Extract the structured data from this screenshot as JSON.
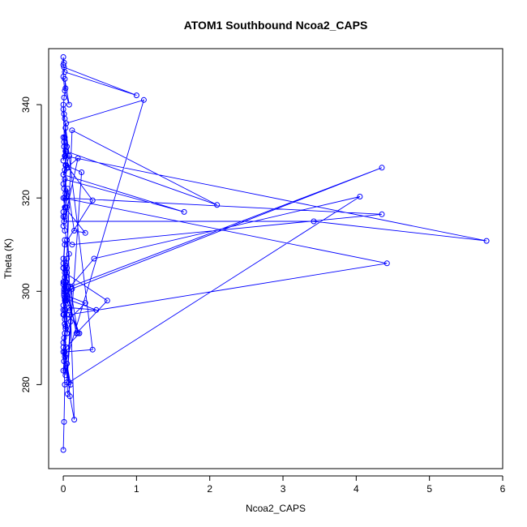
{
  "chart_data": {
    "type": "line",
    "title": "ATOM1 Southbound Ncoa2_CAPS",
    "xlabel": "Ncoa2_CAPS",
    "ylabel": "Theta (K)",
    "xlim": [
      -0.2,
      6.0
    ],
    "ylim": [
      262,
      352
    ],
    "xticks": [
      0,
      1,
      2,
      3,
      4,
      5,
      6
    ],
    "yticks": [
      280,
      300,
      320,
      340
    ],
    "grid": false,
    "color": "#0000ff",
    "markers": "open-circle",
    "x": [
      0.0,
      0.01,
      0.02,
      0.0,
      0.03,
      0.02,
      0.05,
      0.04,
      0.1,
      4.35,
      0.03,
      0.02,
      0.04,
      0.0,
      0.02,
      0.08,
      0.05,
      0.03,
      0.02,
      0.12,
      2.1,
      0.04,
      0.03,
      0.0,
      1.65,
      0.02,
      0.04,
      0.06,
      0.15,
      0.3,
      0.02,
      0.0,
      4.42,
      0.08,
      0.1,
      0.05,
      0.03,
      0.01,
      0.0,
      0.2,
      0.05,
      0.03,
      0.02,
      0.0,
      0.08,
      0.45,
      0.02,
      0.01,
      0.04,
      0.0,
      0.06,
      0.1,
      0.02,
      0.01,
      0.0,
      1.1,
      0.04,
      0.02,
      0.03,
      0.0,
      0.01,
      0.07,
      0.4,
      0.02,
      0.0,
      0.05,
      0.03,
      0.02,
      0.01,
      0.12,
      0.05,
      0.25,
      0.04,
      0.02,
      0.01,
      0.0,
      0.03,
      0.08,
      0.02,
      0.0,
      0.03,
      0.05,
      0.02,
      0.0,
      0.2,
      0.05,
      0.01,
      0.03,
      0.0,
      0.02,
      0.05,
      0.12,
      4.35,
      0.02,
      0.0,
      0.01,
      3.42,
      5.78,
      0.03,
      0.05,
      0.02,
      0.0,
      0.01,
      0.4,
      0.02,
      0.0,
      0.03,
      0.05,
      0.08,
      4.05,
      0.42,
      0.04,
      0.02,
      0.0,
      0.02,
      0.06,
      0.3,
      0.02,
      0.01,
      0.03,
      0.05,
      0.02,
      0.0,
      0.01,
      0.03,
      0.18,
      0.6,
      0.02,
      0.0,
      0.03,
      0.02,
      0.07,
      0.05,
      0.0,
      0.01,
      0.22,
      0.04,
      0.02,
      0.0,
      0.03,
      0.01,
      0.09,
      0.15,
      0.0,
      0.01,
      0.03,
      0.02,
      0.08,
      0.02,
      0.0,
      0.01,
      1.0,
      0.02,
      0.0,
      0.0,
      0.01
    ],
    "y": [
      266.0,
      272.0,
      280.0,
      287.0,
      283.0,
      291.0,
      295.0,
      298.0,
      301.0,
      326.5,
      300.0,
      298.5,
      302.0,
      306.0,
      311.0,
      308.0,
      304.0,
      300.0,
      296.0,
      334.5,
      318.5,
      330.0,
      327.0,
      325.0,
      317.0,
      324.0,
      320.0,
      322.0,
      313.0,
      312.5,
      318.0,
      320.0,
      306.0,
      295.0,
      293.5,
      291.0,
      296.0,
      300.5,
      302.0,
      291.0,
      305.0,
      298.0,
      293.0,
      295.0,
      296.5,
      296.0,
      298.5,
      302.0,
      300.0,
      301.5,
      278.0,
      280.0,
      287.0,
      285.0,
      283.0,
      341.0,
      336.0,
      333.0,
      330.0,
      328.0,
      332.0,
      326.5,
      319.5,
      310.0,
      305.0,
      307.0,
      302.0,
      298.0,
      300.0,
      300.5,
      280.5,
      325.5,
      327.0,
      329.0,
      331.0,
      333.0,
      335.0,
      329.0,
      326.0,
      323.0,
      321.0,
      318.0,
      316.0,
      314.0,
      328.5,
      326.5,
      322.0,
      318.0,
      316.0,
      313.0,
      311.0,
      310.0,
      316.5,
      320.0,
      317.0,
      315.0,
      315.0,
      310.8,
      329.0,
      331.0,
      337.0,
      340.0,
      338.0,
      287.5,
      287.0,
      288.0,
      282.0,
      284.5,
      280.5,
      320.3,
      307.0,
      300.0,
      303.0,
      305.0,
      301.0,
      299.0,
      297.5,
      293.0,
      295.0,
      292.5,
      291.0,
      294.0,
      296.0,
      299.0,
      302.0,
      291.0,
      298.0,
      304.0,
      307.0,
      305.5,
      303.0,
      301.0,
      299.0,
      297.0,
      299.5,
      291.0,
      288.0,
      286.0,
      289.0,
      292.0,
      290.0,
      277.5,
      272.5,
      339.0,
      341.5,
      343.5,
      345.5,
      340.0,
      343.0,
      346.0,
      348.0,
      342.0,
      347.0,
      348.5,
      350.2,
      349.0
    ]
  }
}
